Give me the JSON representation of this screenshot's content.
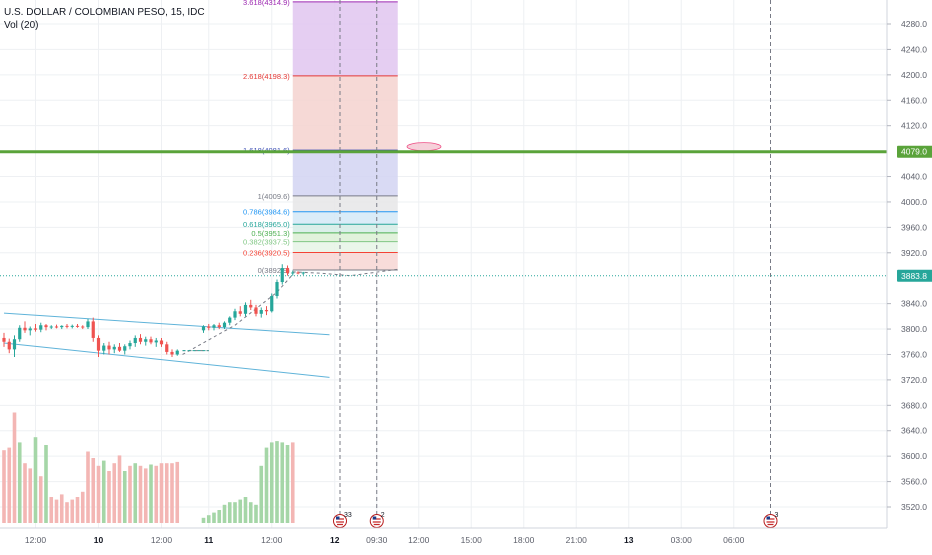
{
  "legend": {
    "symbol": "U.S. DOLLAR / COLOMBIAN PESO, 15, IDC",
    "volume": "Vol (20)"
  },
  "colors": {
    "up": "#26a69a",
    "down": "#ef5350",
    "vol_up": "#a5d6a7",
    "vol_down": "#f3b6b4",
    "hline": "#5aa33a",
    "last_price": "#26a69a",
    "channel": "#5fb3d9",
    "grid": "#eef0f3",
    "axis_text": "#5d606b"
  },
  "chart_data": {
    "type": "candlestick",
    "y_axis": {
      "range": [
        3500,
        4330
      ],
      "ticks": [
        4280,
        4240,
        4200,
        4160,
        4120,
        4040,
        4000,
        3960,
        3920,
        3840,
        3800,
        3760,
        3720,
        3680,
        3640,
        3600,
        3560,
        3520
      ],
      "tick_labels": [
        "4280.0",
        "4240.0",
        "4200.0",
        "4160.0",
        "4120.0",
        "4040.0",
        "4000.0",
        "3960.0",
        "3920.0",
        "3840.0",
        "3800.0",
        "3760.0",
        "3720.0",
        "3680.0",
        "3640.0",
        "3600.0",
        "3560.0",
        "3520.0"
      ]
    },
    "x_axis": {
      "labels": [
        "12:00",
        "10",
        "12:00",
        "11",
        "12:00",
        "12",
        "09:30",
        "12:00",
        "15:00",
        "18:00",
        "21:00",
        "13",
        "03:00",
        "06:00"
      ],
      "bold": [
        false,
        true,
        false,
        true,
        false,
        true,
        false,
        false,
        false,
        false,
        false,
        true,
        false,
        false
      ],
      "bar_index": [
        6,
        18,
        30,
        39,
        51,
        63,
        71,
        79,
        89,
        99,
        109,
        119,
        129,
        139
      ]
    },
    "candles": [
      {
        "i": 0,
        "o": 3786,
        "h": 3794,
        "l": 3772,
        "c": 3780
      },
      {
        "i": 1,
        "o": 3780,
        "h": 3785,
        "l": 3762,
        "c": 3768
      },
      {
        "i": 2,
        "o": 3768,
        "h": 3790,
        "l": 3756,
        "c": 3784
      },
      {
        "i": 3,
        "o": 3784,
        "h": 3806,
        "l": 3780,
        "c": 3802
      },
      {
        "i": 4,
        "o": 3802,
        "h": 3812,
        "l": 3794,
        "c": 3798
      },
      {
        "i": 5,
        "o": 3798,
        "h": 3804,
        "l": 3790,
        "c": 3801
      },
      {
        "i": 6,
        "o": 3801,
        "h": 3808,
        "l": 3796,
        "c": 3799
      },
      {
        "i": 7,
        "o": 3799,
        "h": 3810,
        "l": 3795,
        "c": 3806
      },
      {
        "i": 8,
        "o": 3806,
        "h": 3808,
        "l": 3798,
        "c": 3803
      },
      {
        "i": 9,
        "o": 3803,
        "h": 3806,
        "l": 3800,
        "c": 3804
      },
      {
        "i": 10,
        "o": 3804,
        "h": 3807,
        "l": 3801,
        "c": 3803
      },
      {
        "i": 11,
        "o": 3803,
        "h": 3806,
        "l": 3800,
        "c": 3805
      },
      {
        "i": 12,
        "o": 3805,
        "h": 3808,
        "l": 3801,
        "c": 3804
      },
      {
        "i": 13,
        "o": 3804,
        "h": 3807,
        "l": 3801,
        "c": 3805
      },
      {
        "i": 14,
        "o": 3805,
        "h": 3808,
        "l": 3802,
        "c": 3804
      },
      {
        "i": 15,
        "o": 3804,
        "h": 3806,
        "l": 3800,
        "c": 3803
      },
      {
        "i": 16,
        "o": 3803,
        "h": 3816,
        "l": 3800,
        "c": 3812
      },
      {
        "i": 17,
        "o": 3812,
        "h": 3818,
        "l": 3780,
        "c": 3786
      },
      {
        "i": 18,
        "o": 3786,
        "h": 3790,
        "l": 3756,
        "c": 3766
      },
      {
        "i": 19,
        "o": 3766,
        "h": 3778,
        "l": 3760,
        "c": 3774
      },
      {
        "i": 20,
        "o": 3774,
        "h": 3780,
        "l": 3760,
        "c": 3768
      },
      {
        "i": 21,
        "o": 3768,
        "h": 3776,
        "l": 3762,
        "c": 3772
      },
      {
        "i": 22,
        "o": 3772,
        "h": 3778,
        "l": 3764,
        "c": 3766
      },
      {
        "i": 23,
        "o": 3766,
        "h": 3776,
        "l": 3760,
        "c": 3773
      },
      {
        "i": 24,
        "o": 3773,
        "h": 3782,
        "l": 3768,
        "c": 3778
      },
      {
        "i": 25,
        "o": 3778,
        "h": 3790,
        "l": 3772,
        "c": 3786
      },
      {
        "i": 26,
        "o": 3786,
        "h": 3792,
        "l": 3776,
        "c": 3780
      },
      {
        "i": 27,
        "o": 3780,
        "h": 3788,
        "l": 3774,
        "c": 3784
      },
      {
        "i": 28,
        "o": 3784,
        "h": 3788,
        "l": 3776,
        "c": 3779
      },
      {
        "i": 29,
        "o": 3779,
        "h": 3786,
        "l": 3772,
        "c": 3782
      },
      {
        "i": 30,
        "o": 3782,
        "h": 3786,
        "l": 3772,
        "c": 3776
      },
      {
        "i": 31,
        "o": 3776,
        "h": 3780,
        "l": 3760,
        "c": 3764
      },
      {
        "i": 32,
        "o": 3764,
        "h": 3768,
        "l": 3756,
        "c": 3760
      },
      {
        "i": 33,
        "o": 3760,
        "h": 3768,
        "l": 3758,
        "c": 3766
      },
      {
        "i": 38,
        "o": 3798,
        "h": 3806,
        "l": 3794,
        "c": 3804
      },
      {
        "i": 39,
        "o": 3804,
        "h": 3808,
        "l": 3798,
        "c": 3802
      },
      {
        "i": 40,
        "o": 3802,
        "h": 3808,
        "l": 3798,
        "c": 3806
      },
      {
        "i": 41,
        "o": 3806,
        "h": 3810,
        "l": 3800,
        "c": 3803
      },
      {
        "i": 42,
        "o": 3803,
        "h": 3812,
        "l": 3800,
        "c": 3810
      },
      {
        "i": 43,
        "o": 3810,
        "h": 3820,
        "l": 3806,
        "c": 3818
      },
      {
        "i": 44,
        "o": 3818,
        "h": 3832,
        "l": 3814,
        "c": 3828
      },
      {
        "i": 45,
        "o": 3828,
        "h": 3836,
        "l": 3820,
        "c": 3824
      },
      {
        "i": 46,
        "o": 3824,
        "h": 3842,
        "l": 3820,
        "c": 3838
      },
      {
        "i": 47,
        "o": 3838,
        "h": 3846,
        "l": 3830,
        "c": 3834
      },
      {
        "i": 48,
        "o": 3834,
        "h": 3838,
        "l": 3820,
        "c": 3824
      },
      {
        "i": 49,
        "o": 3824,
        "h": 3834,
        "l": 3818,
        "c": 3830
      },
      {
        "i": 50,
        "o": 3830,
        "h": 3836,
        "l": 3822,
        "c": 3828
      },
      {
        "i": 51,
        "o": 3828,
        "h": 3856,
        "l": 3826,
        "c": 3852
      },
      {
        "i": 52,
        "o": 3852,
        "h": 3878,
        "l": 3848,
        "c": 3874
      },
      {
        "i": 53,
        "o": 3874,
        "h": 3902,
        "l": 3870,
        "c": 3896
      },
      {
        "i": 54,
        "o": 3896,
        "h": 3900,
        "l": 3884,
        "c": 3888
      },
      {
        "i": 55,
        "o": 3888,
        "h": 3892,
        "l": 3884,
        "c": 3889
      },
      {
        "i": 56,
        "o": 3889,
        "h": 3891,
        "l": 3886,
        "c": 3888
      },
      {
        "i": 57,
        "o": 3888,
        "h": 3890,
        "l": 3885,
        "c": 3889
      }
    ],
    "volume": [
      {
        "i": 0,
        "v": 56,
        "up": false
      },
      {
        "i": 1,
        "v": 58,
        "up": false
      },
      {
        "i": 2,
        "v": 85,
        "up": false
      },
      {
        "i": 3,
        "v": 62,
        "up": true
      },
      {
        "i": 4,
        "v": 46,
        "up": false
      },
      {
        "i": 5,
        "v": 42,
        "up": false
      },
      {
        "i": 6,
        "v": 66,
        "up": true
      },
      {
        "i": 7,
        "v": 36,
        "up": false
      },
      {
        "i": 8,
        "v": 60,
        "up": true
      },
      {
        "i": 9,
        "v": 20,
        "up": false
      },
      {
        "i": 10,
        "v": 18,
        "up": false
      },
      {
        "i": 11,
        "v": 22,
        "up": false
      },
      {
        "i": 12,
        "v": 16,
        "up": false
      },
      {
        "i": 13,
        "v": 18,
        "up": false
      },
      {
        "i": 14,
        "v": 20,
        "up": false
      },
      {
        "i": 15,
        "v": 24,
        "up": false
      },
      {
        "i": 16,
        "v": 55,
        "up": false
      },
      {
        "i": 17,
        "v": 50,
        "up": false
      },
      {
        "i": 18,
        "v": 44,
        "up": false
      },
      {
        "i": 19,
        "v": 48,
        "up": true
      },
      {
        "i": 20,
        "v": 40,
        "up": false
      },
      {
        "i": 21,
        "v": 46,
        "up": false
      },
      {
        "i": 22,
        "v": 52,
        "up": false
      },
      {
        "i": 23,
        "v": 40,
        "up": true
      },
      {
        "i": 24,
        "v": 44,
        "up": false
      },
      {
        "i": 25,
        "v": 46,
        "up": true
      },
      {
        "i": 26,
        "v": 44,
        "up": false
      },
      {
        "i": 27,
        "v": 42,
        "up": false
      },
      {
        "i": 28,
        "v": 45,
        "up": true
      },
      {
        "i": 29,
        "v": 44,
        "up": false
      },
      {
        "i": 30,
        "v": 46,
        "up": false
      },
      {
        "i": 31,
        "v": 46,
        "up": false
      },
      {
        "i": 32,
        "v": 46,
        "up": false
      },
      {
        "i": 33,
        "v": 47,
        "up": false
      },
      {
        "i": 38,
        "v": 4,
        "up": true
      },
      {
        "i": 39,
        "v": 6,
        "up": true
      },
      {
        "i": 40,
        "v": 8,
        "up": true
      },
      {
        "i": 41,
        "v": 10,
        "up": true
      },
      {
        "i": 42,
        "v": 14,
        "up": true
      },
      {
        "i": 43,
        "v": 16,
        "up": true
      },
      {
        "i": 44,
        "v": 16,
        "up": true
      },
      {
        "i": 45,
        "v": 18,
        "up": true
      },
      {
        "i": 46,
        "v": 20,
        "up": true
      },
      {
        "i": 47,
        "v": 16,
        "up": true
      },
      {
        "i": 48,
        "v": 14,
        "up": true
      },
      {
        "i": 49,
        "v": 44,
        "up": true
      },
      {
        "i": 50,
        "v": 58,
        "up": true
      },
      {
        "i": 51,
        "v": 62,
        "up": true
      },
      {
        "i": 52,
        "v": 63,
        "up": true
      },
      {
        "i": 53,
        "v": 62,
        "up": true
      },
      {
        "i": 54,
        "v": 60,
        "up": true
      },
      {
        "i": 55,
        "v": 62,
        "up": false
      }
    ],
    "volume_max": 100,
    "fib": {
      "i_start": 55,
      "i_end": 75,
      "levels": [
        {
          "label": "3.618(4314.9)",
          "price": 4314.9,
          "color": "#9c27b0",
          "fill": "#e1c6f0"
        },
        {
          "label": "2.618(4198.3)",
          "price": 4198.3,
          "color": "#e53935",
          "fill": "#f5d2cf"
        },
        {
          "label": "1.618(4081.6)",
          "price": 4081.6,
          "color": "#3f51b5",
          "fill": "#d2d4f2"
        },
        {
          "label": "1(4009.6)",
          "price": 4009.6,
          "color": "#787b86",
          "fill": "#e6e6e8"
        },
        {
          "label": "0.786(3984.6)",
          "price": 3984.6,
          "color": "#2196f3",
          "fill": "#d4e9f7"
        },
        {
          "label": "0.618(3965.0)",
          "price": 3965.0,
          "color": "#26a69a",
          "fill": "#d5ece6"
        },
        {
          "label": "0.5(3951.3)",
          "price": 3951.3,
          "color": "#4caf50",
          "fill": "#dcf0d6"
        },
        {
          "label": "0.382(3937.5)",
          "price": 3937.5,
          "color": "#81c784",
          "fill": "#e6f4e6"
        },
        {
          "label": "0.236(3920.5)",
          "price": 3920.5,
          "color": "#f44336",
          "fill": "#f7d6d4"
        },
        {
          "label": "0(3892.9)",
          "price": 3892.9,
          "color": "#787b86",
          "fill": "#f7d6d4"
        }
      ]
    },
    "horizontal_line": {
      "price": 4079.0,
      "label": "4079.0"
    },
    "last_price": {
      "price": 3883.8,
      "label": "3883.8"
    },
    "channel": {
      "upper": [
        {
          "i": 0,
          "p": 3825
        },
        {
          "i": 62,
          "p": 3791
        }
      ],
      "lower": [
        {
          "i": 0,
          "p": 3778
        },
        {
          "i": 62,
          "p": 3724
        }
      ]
    },
    "vertical_lines": [
      {
        "i": 64
      },
      {
        "i": 71
      },
      {
        "i": 146
      }
    ],
    "event_badges": [
      {
        "i": 64,
        "count": "33"
      },
      {
        "i": 71,
        "count": "2"
      },
      {
        "i": 146,
        "count": "3"
      }
    ],
    "projection_paths": [
      [
        {
          "i": 34,
          "p": 3766
        },
        {
          "i": 39,
          "p": 3766
        }
      ],
      [
        {
          "i": 34,
          "p": 3760
        },
        {
          "i": 44,
          "p": 3806
        },
        {
          "i": 52,
          "p": 3858
        },
        {
          "i": 55,
          "p": 3886
        }
      ],
      [
        {
          "i": 55,
          "p": 3890
        },
        {
          "i": 60,
          "p": 3888
        },
        {
          "i": 66,
          "p": 3884
        },
        {
          "i": 75,
          "p": 3894
        }
      ]
    ],
    "ellipse": {
      "i": 80,
      "p": 4087
    }
  }
}
